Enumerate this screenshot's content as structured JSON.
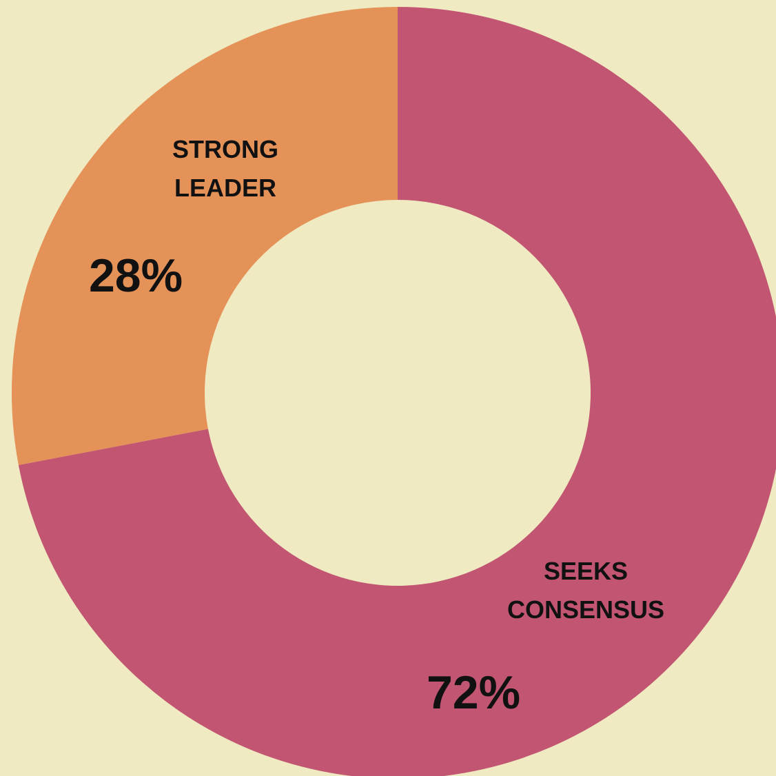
{
  "chart_data": {
    "type": "pie",
    "categories": [
      "STRONG LEADER",
      "SEEKS CONSENSUS"
    ],
    "values": [
      28,
      72
    ],
    "value_labels": [
      "28%",
      "72%"
    ],
    "colors": [
      "#e59259",
      "#c25672"
    ],
    "donut": true
  }
}
